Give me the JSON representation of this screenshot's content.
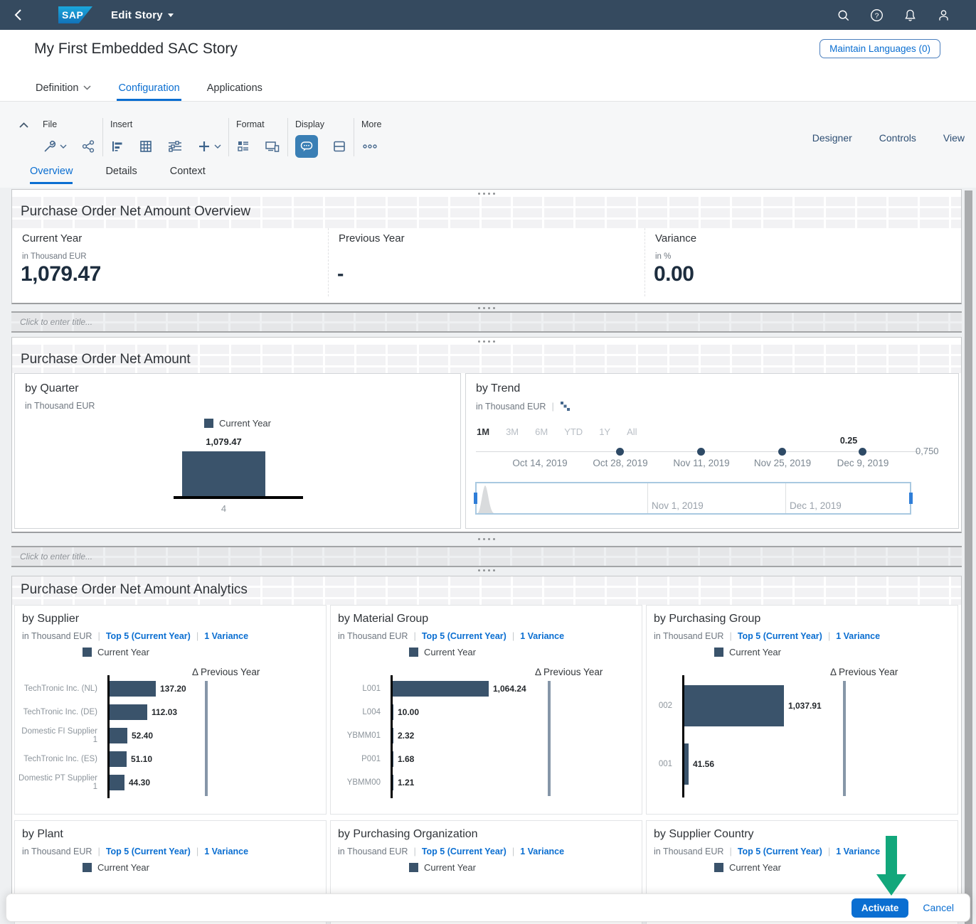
{
  "shell": {
    "title": "Edit Story",
    "logo_text": "SAP",
    "right_icons": [
      "search-icon",
      "help-icon",
      "bell-icon",
      "person-icon"
    ]
  },
  "header": {
    "title": "My First Embedded SAC Story",
    "maintain_languages_button": "Maintain Languages (0)"
  },
  "main_tabs": {
    "definition": "Definition",
    "configuration": "Configuration",
    "applications": "Applications",
    "active": "Configuration"
  },
  "toolbar": {
    "groups": {
      "file": "File",
      "insert": "Insert",
      "format": "Format",
      "display": "Display",
      "more": "More"
    },
    "right_actions": {
      "designer": "Designer",
      "controls": "Controls",
      "view": "View"
    }
  },
  "subtabs": {
    "overview": "Overview",
    "details": "Details",
    "context": "Context",
    "active": "Overview"
  },
  "placeholders": {
    "lane_title": "Click to enter title..."
  },
  "sections": {
    "overview": {
      "title": "Purchase Order Net Amount Overview",
      "kpis": [
        {
          "name": "Current Year",
          "unit": "in Thousand EUR",
          "value": "1,079.47"
        },
        {
          "name": "Previous Year",
          "unit": "",
          "value": "-"
        },
        {
          "name": "Variance",
          "unit": "in %",
          "value": "0.00"
        }
      ]
    },
    "net_amount": {
      "title": "Purchase Order Net Amount"
    },
    "analytics": {
      "title": "Purchase Order Net Amount Analytics"
    }
  },
  "chart_data": [
    {
      "id": "by_quarter",
      "type": "bar",
      "title": "by Quarter",
      "subtitle": "in Thousand EUR",
      "legend": [
        "Current Year"
      ],
      "categories": [
        "4"
      ],
      "values": [
        1079.47
      ],
      "value_labels": [
        "1,079.47"
      ]
    },
    {
      "id": "by_trend",
      "type": "line",
      "title": "by Trend",
      "subtitle": "in Thousand EUR",
      "range_buttons": [
        "1M",
        "3M",
        "6M",
        "YTD",
        "1Y",
        "All"
      ],
      "active_range": "1M",
      "x_ticks": [
        "Oct 14, 2019",
        "Oct 28, 2019",
        "Nov 11, 2019",
        "Nov 25, 2019",
        "Dec 9, 2019"
      ],
      "point_dates": [
        "Oct 28, 2019",
        "Nov 11, 2019",
        "Nov 25, 2019",
        "Dec 9, 2019"
      ],
      "point_value_label": "0.25",
      "y_axis_label": "0,750",
      "overview_ticks": [
        "Nov 1, 2019",
        "Dec 1, 2019"
      ]
    },
    {
      "id": "by_supplier",
      "type": "hbar",
      "title": "by Supplier",
      "subtitle": "in Thousand EUR",
      "filters": [
        "Top 5 (Current Year)",
        "1 Variance"
      ],
      "legend": [
        "Current Year"
      ],
      "variance_column": "Δ Previous Year",
      "categories": [
        "TechTronic Inc. (NL)",
        "TechTronic Inc. (DE)",
        "Domestic FI Supplier 1",
        "TechTronic Inc. (ES)",
        "Domestic PT Supplier 1"
      ],
      "values": [
        137.2,
        112.03,
        52.4,
        51.1,
        44.3
      ],
      "value_labels": [
        "137.20",
        "112.03",
        "52.40",
        "51.10",
        "44.30"
      ]
    },
    {
      "id": "by_material_group",
      "type": "hbar",
      "title": "by Material Group",
      "subtitle": "in Thousand EUR",
      "filters": [
        "Top 5 (Current Year)",
        "1 Variance"
      ],
      "legend": [
        "Current Year"
      ],
      "variance_column": "Δ Previous Year",
      "categories": [
        "L001",
        "L004",
        "YBMM01",
        "P001",
        "YBMM00"
      ],
      "values": [
        1064.24,
        10.0,
        2.32,
        1.68,
        1.21
      ],
      "value_labels": [
        "1,064.24",
        "10.00",
        "2.32",
        "1.68",
        "1.21"
      ]
    },
    {
      "id": "by_purchasing_group",
      "type": "hbar",
      "title": "by Purchasing Group",
      "subtitle": "in Thousand EUR",
      "filters": [
        "Top 5 (Current Year)",
        "1 Variance"
      ],
      "legend": [
        "Current Year"
      ],
      "variance_column": "Δ Previous Year",
      "categories": [
        "002",
        "001"
      ],
      "values": [
        1037.91,
        41.56
      ],
      "value_labels": [
        "1,037.91",
        "41.56"
      ]
    },
    {
      "id": "by_plant",
      "type": "hbar",
      "title": "by Plant",
      "subtitle": "in Thousand EUR",
      "filters": [
        "Top 5 (Current Year)",
        "1 Variance"
      ],
      "legend": [
        "Current Year"
      ],
      "categories": [],
      "values": [],
      "value_labels": [],
      "truncated": true
    },
    {
      "id": "by_purchasing_organization",
      "type": "hbar",
      "title": "by Purchasing Organization",
      "subtitle": "in Thousand EUR",
      "filters": [
        "Top 5 (Current Year)",
        "1 Variance"
      ],
      "legend": [
        "Current Year"
      ],
      "categories": [],
      "values": [],
      "value_labels": [],
      "truncated": true
    },
    {
      "id": "by_supplier_country",
      "type": "hbar",
      "title": "by Supplier Country",
      "subtitle": "in Thousand EUR",
      "filters": [
        "Top 5 (Current Year)",
        "1 Variance"
      ],
      "legend": [
        "Current Year"
      ],
      "categories": [],
      "values": [],
      "value_labels": [],
      "truncated": true
    }
  ],
  "footer": {
    "activate": "Activate",
    "cancel": "Cancel"
  },
  "colors": {
    "shell": "#354a5f",
    "accent_blue": "#0a6ed1",
    "bar_navy": "#3a536b",
    "arrow_green": "#12a77b"
  }
}
